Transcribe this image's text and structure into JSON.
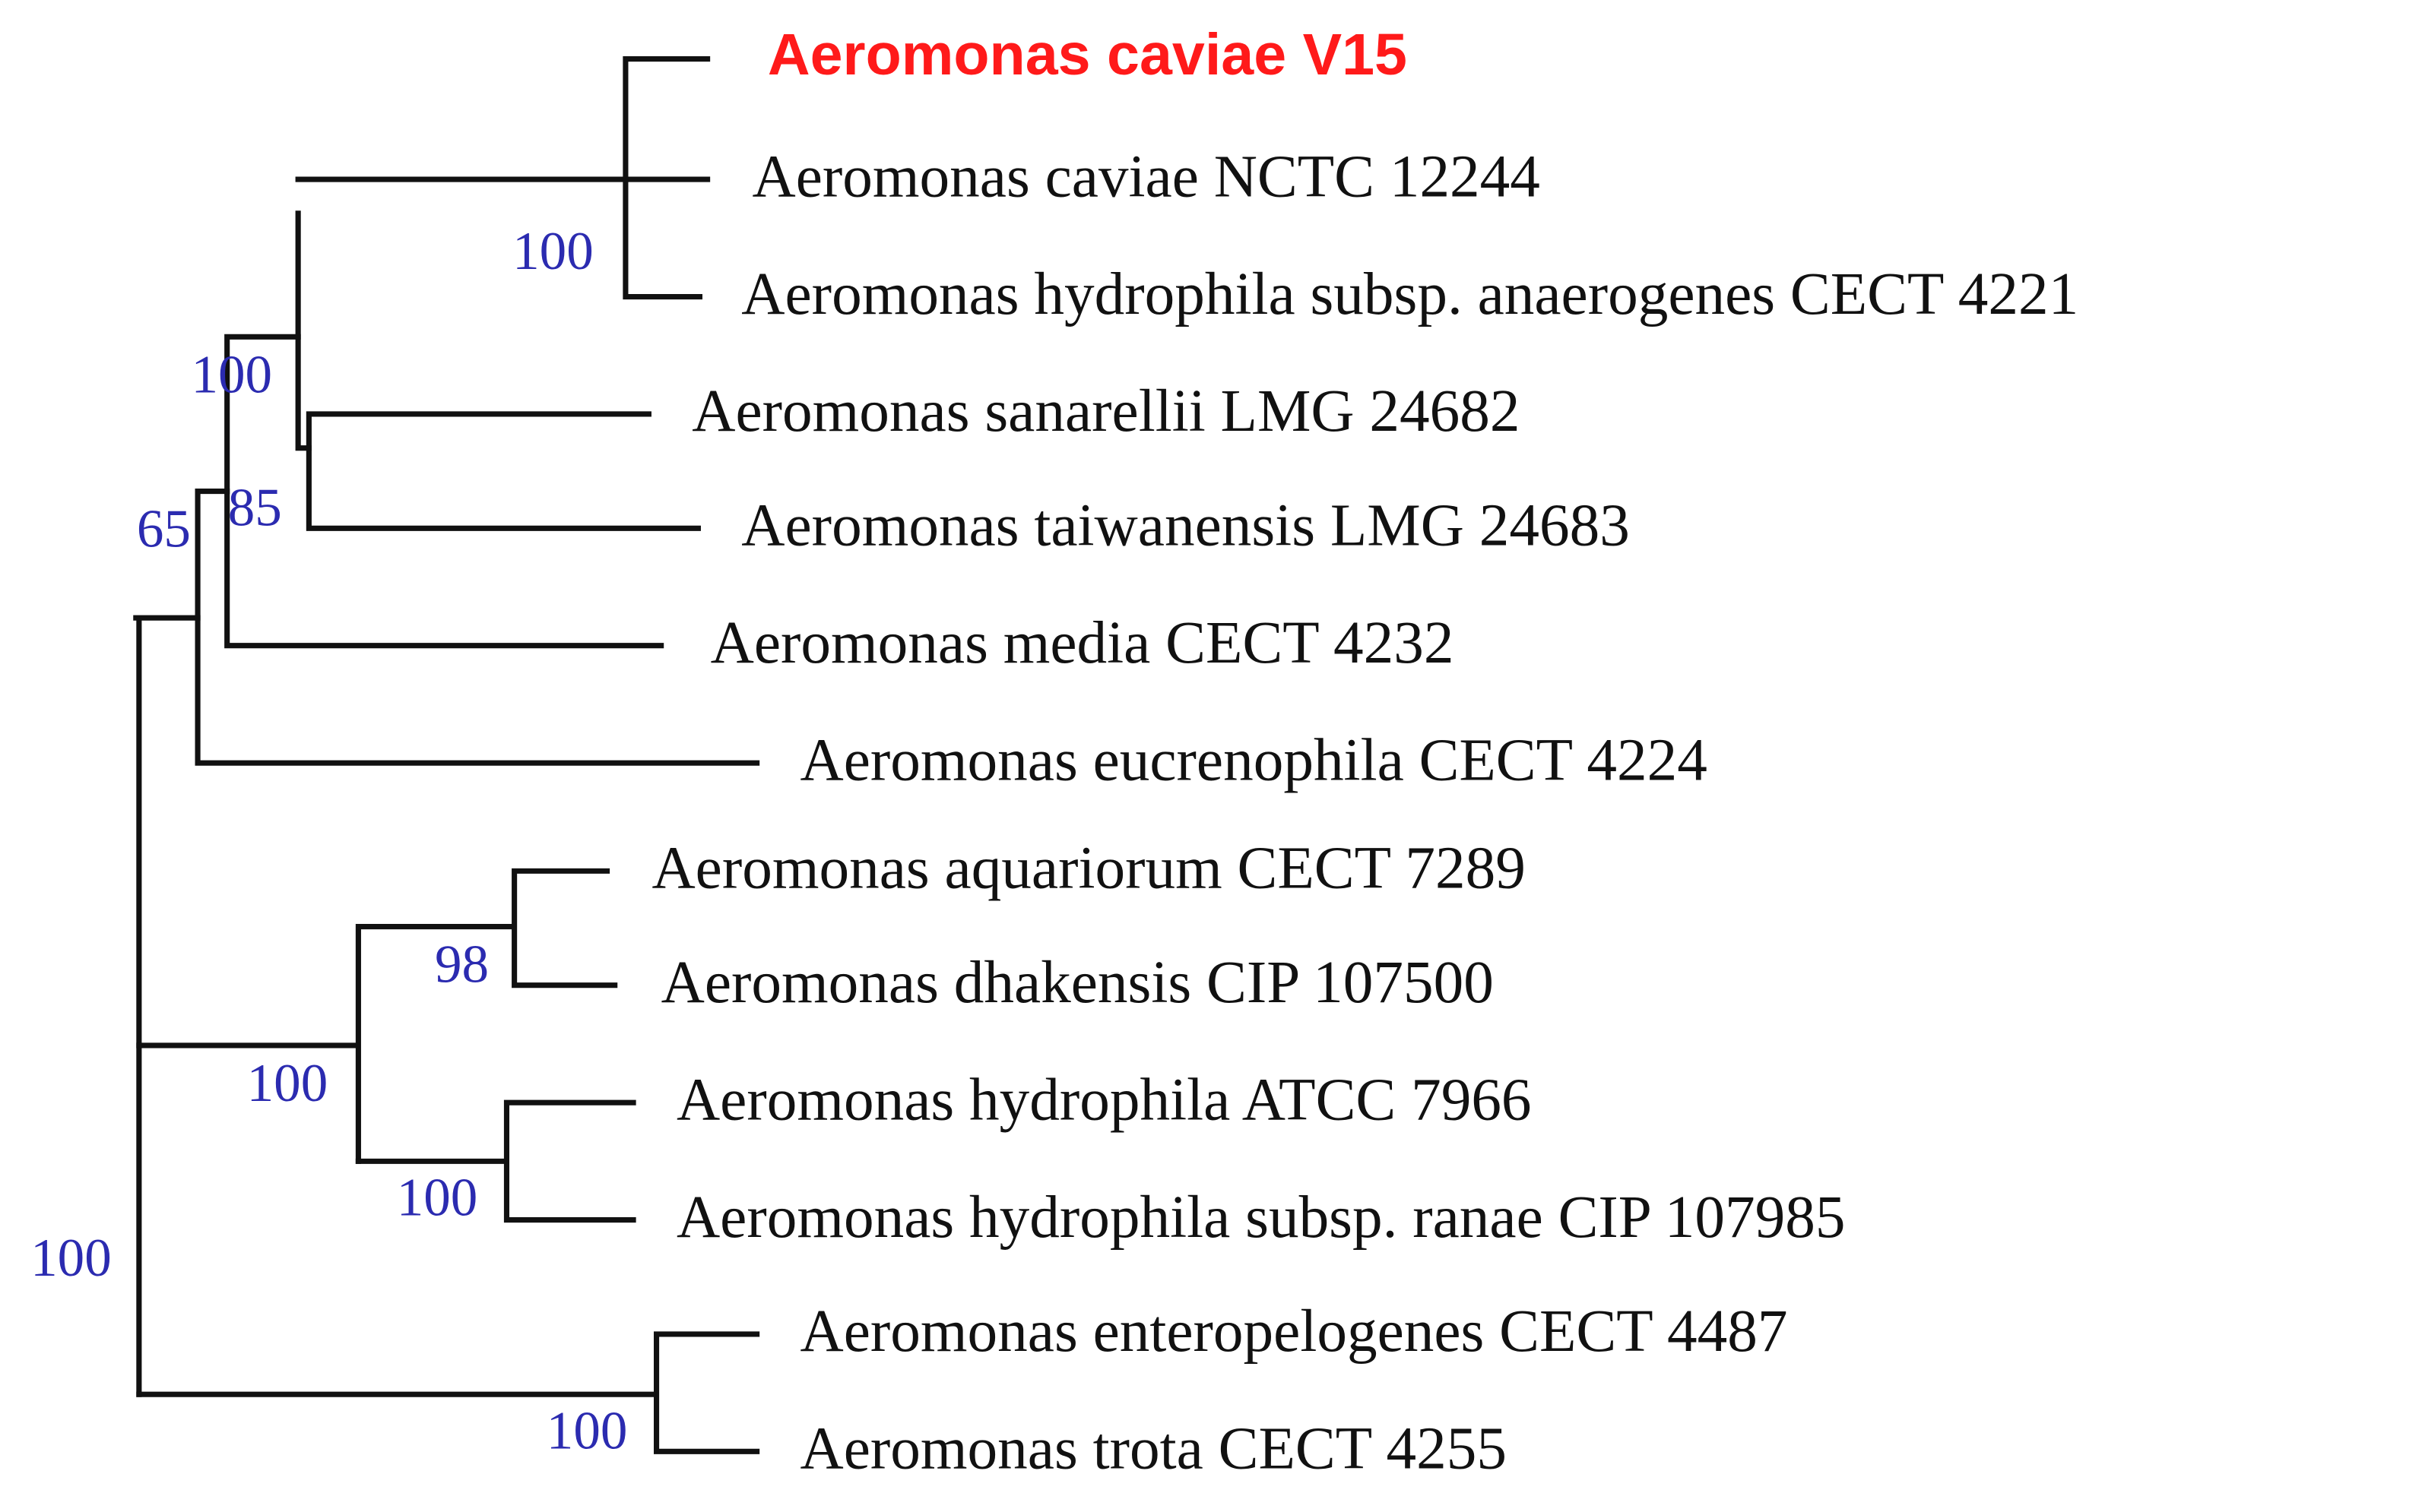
{
  "tree": {
    "leaves": [
      "Aeromonas caviae V15",
      "Aeromonas caviae NCTC 12244",
      "Aeromonas hydrophila subsp. anaerogenes CECT 4221",
      "Aeromonas sanarellii LMG 24682",
      "Aeromonas taiwanensis LMG 24683",
      "Aeromonas media CECT 4232",
      "Aeromonas eucrenophila CECT 4224",
      "Aeromonas aquariorum CECT 7289",
      "Aeromonas dhakensis CIP 107500",
      "Aeromonas hydrophila ATCC 7966",
      "Aeromonas hydrophila subsp. ranae CIP 107985",
      "Aeromonas enteropelogenes CECT 4487",
      "Aeromonas trota CECT 4255"
    ],
    "bootstrap": [
      "100",
      "100",
      "65",
      "85",
      "98",
      "100",
      "100",
      "100",
      "100"
    ]
  }
}
